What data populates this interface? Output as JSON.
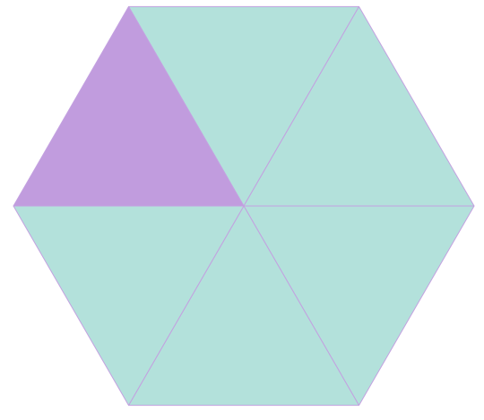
{
  "diagram": {
    "shape": "regular hexagon",
    "divisions": 6,
    "part_shape": "equilateral triangle",
    "shaded_count": 1,
    "shaded_positions": [
      "upper-left"
    ],
    "colors": {
      "shaded": "#c19cde",
      "unshaded": "#b3e1db",
      "edge": "#c3a1e0",
      "background": "#ffffff"
    },
    "triangles": [
      {
        "id": "top",
        "shaded": false
      },
      {
        "id": "upper-right",
        "shaded": false
      },
      {
        "id": "lower-right",
        "shaded": false
      },
      {
        "id": "bottom",
        "shaded": false
      },
      {
        "id": "lower-left",
        "shaded": false
      },
      {
        "id": "upper-left",
        "shaded": true
      }
    ]
  }
}
